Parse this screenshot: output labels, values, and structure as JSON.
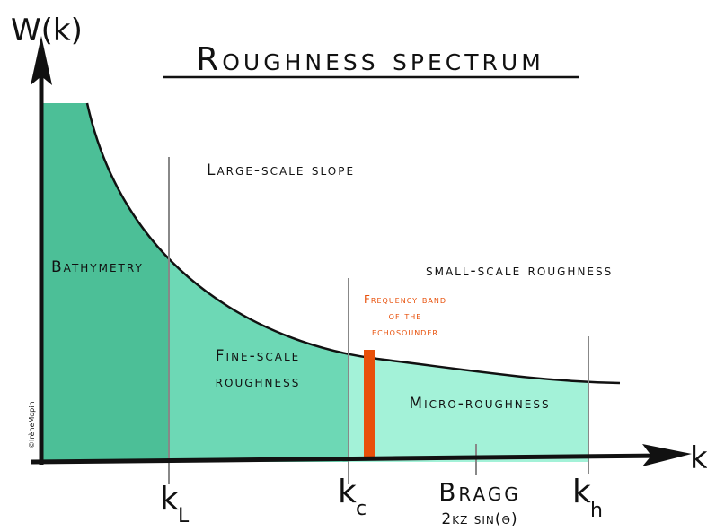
{
  "title": "Roughness spectrum",
  "y_axis": "W(k)",
  "x_axis": "k",
  "regions": {
    "large_scale": "Large-scale slope",
    "small_scale": "small-scale roughness",
    "bathymetry": "Bathymetry",
    "fine_scale": [
      "Fine-scale",
      "roughness"
    ],
    "micro": "Micro-roughness"
  },
  "echosounder": [
    "Frequency band",
    "of the",
    "echosounder"
  ],
  "ticks": {
    "kL": {
      "k": "k",
      "sub": "L"
    },
    "kc": {
      "k": "k",
      "sub": "c"
    },
    "kh": {
      "k": "k",
      "sub": "h"
    }
  },
  "bragg": {
    "name": "Bragg",
    "formula": "2kζ sin(θ)"
  },
  "credit": "©IrèneMopin"
}
